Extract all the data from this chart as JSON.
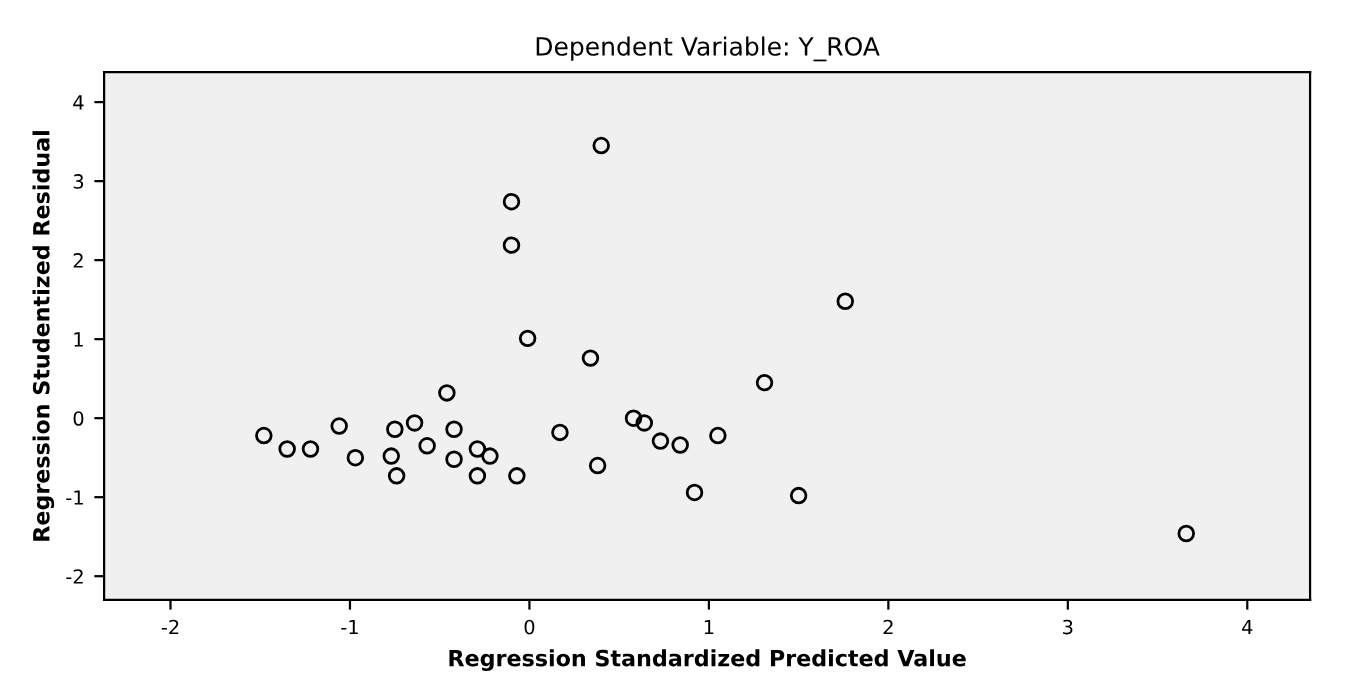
{
  "chart_data": {
    "type": "scatter",
    "title": "Dependent Variable: Y_ROA",
    "xlabel": "Regression Standardized Predicted Value",
    "ylabel": "Regression Studentized Residual",
    "x": [
      0.4,
      -0.1,
      -0.1,
      1.76,
      -0.01,
      0.34,
      1.31,
      -0.46,
      -1.06,
      -1.48,
      -1.35,
      -1.22,
      -0.97,
      -0.75,
      -0.64,
      -0.77,
      -0.74,
      -0.57,
      -0.42,
      -0.42,
      -0.29,
      -0.22,
      -0.29,
      -0.07,
      0.17,
      0.38,
      0.58,
      0.64,
      0.73,
      0.84,
      1.05,
      0.92,
      1.5,
      3.66
    ],
    "values": [
      3.45,
      2.74,
      2.19,
      1.48,
      1.01,
      0.76,
      0.45,
      0.32,
      -0.1,
      -0.22,
      -0.39,
      -0.39,
      -0.5,
      -0.14,
      -0.06,
      -0.48,
      -0.73,
      -0.35,
      -0.14,
      -0.52,
      -0.39,
      -0.48,
      -0.73,
      -0.73,
      -0.18,
      -0.6,
      0.0,
      -0.06,
      -0.29,
      -0.34,
      -0.22,
      -0.94,
      -0.98,
      -1.46
    ],
    "color": "#000000",
    "marker": "circle",
    "xlim": [
      -2.37,
      4.35
    ],
    "ylim": [
      -2.3,
      4.38
    ],
    "xticks": [
      -2,
      -1,
      0,
      1,
      2,
      3,
      4
    ],
    "yticks": [
      -2,
      -1,
      0,
      1,
      2,
      3,
      4
    ],
    "grid": false
  }
}
